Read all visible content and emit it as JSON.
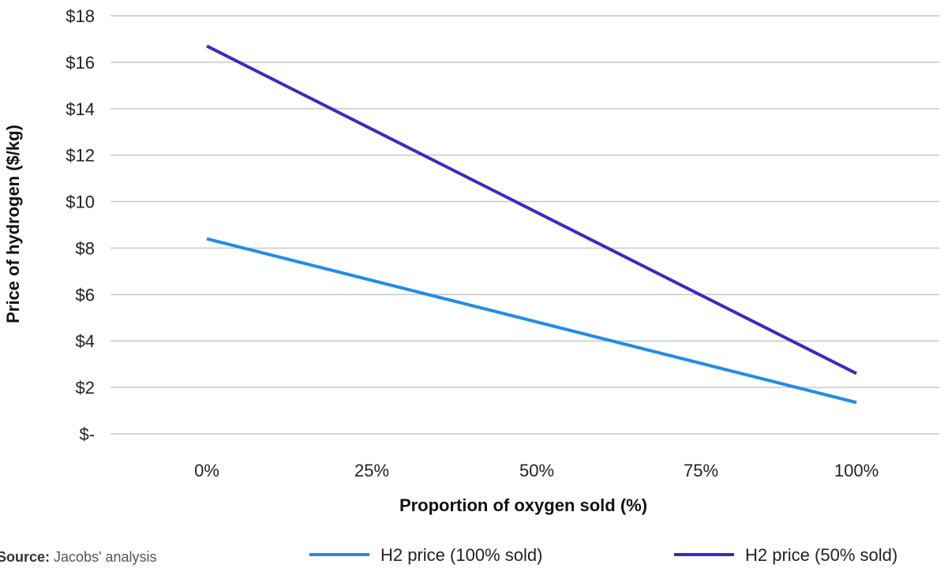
{
  "chart_data": {
    "type": "line",
    "x": [
      "0%",
      "100%"
    ],
    "categories": [
      "0%",
      "25%",
      "50%",
      "75%",
      "100%"
    ],
    "series": [
      {
        "name": "H2 price (100% sold)",
        "color": "#1f8ceb",
        "values": [
          8.4,
          1.35
        ]
      },
      {
        "name": "H2 price (50% sold)",
        "color": "#3a2bbf",
        "values": [
          16.7,
          2.6
        ]
      }
    ],
    "xlabel": "Proportion of oxygen sold (%)",
    "ylabel": "Price of hydrogen ($/kg)",
    "ylim": [
      0,
      18
    ],
    "yticks": [
      {
        "value": 0,
        "label": "$-"
      },
      {
        "value": 2,
        "label": "$2"
      },
      {
        "value": 4,
        "label": "$4"
      },
      {
        "value": 6,
        "label": "$6"
      },
      {
        "value": 8,
        "label": "$8"
      },
      {
        "value": 10,
        "label": "$10"
      },
      {
        "value": 12,
        "label": "$12"
      },
      {
        "value": 14,
        "label": "$14"
      },
      {
        "value": 16,
        "label": "$16"
      },
      {
        "value": 18,
        "label": "$18"
      }
    ],
    "grid": true,
    "legend": "bottom-right",
    "gridline_color": "#c8c8c8"
  },
  "source": {
    "label": "Source:",
    "text": " Jacobs' analysis"
  }
}
